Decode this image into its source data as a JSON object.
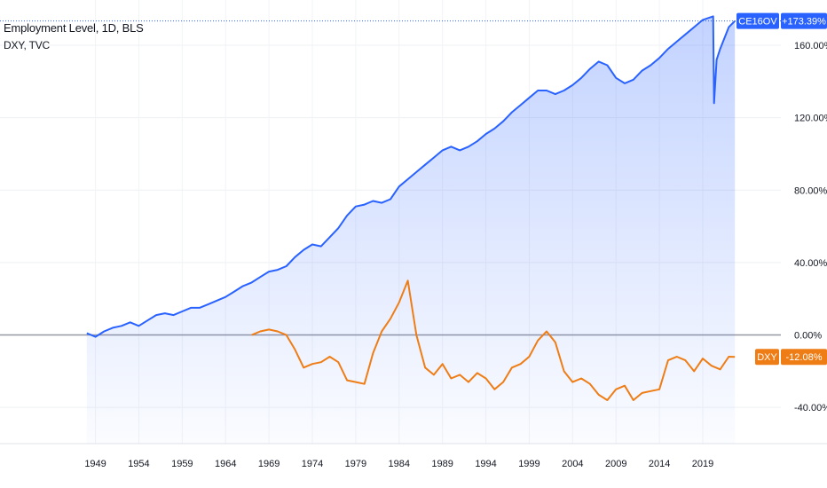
{
  "chart_data": {
    "type": "line",
    "legend": [
      "Employment Level, 1D, BLS",
      "DXY, TVC"
    ],
    "x_ticks": [
      "1949",
      "1954",
      "1959",
      "1964",
      "1969",
      "1974",
      "1979",
      "1984",
      "1989",
      "1994",
      "1999",
      "2004",
      "2009",
      "2014",
      "2019"
    ],
    "y_ticks": [
      "160.00%",
      "120.00%",
      "80.00%",
      "40.00%",
      "0.00%",
      "-40.00%"
    ],
    "ylim": [
      -60,
      185
    ],
    "xlim": [
      1938,
      2028
    ],
    "grid": true,
    "series": [
      {
        "name": "CE16OV",
        "color": "#2962ff",
        "area_fill": true,
        "last_value_label": "+173.39%",
        "points": [
          [
            1948,
            1
          ],
          [
            1949,
            -1
          ],
          [
            1950,
            2
          ],
          [
            1951,
            4
          ],
          [
            1952,
            5
          ],
          [
            1953,
            7
          ],
          [
            1954,
            5
          ],
          [
            1955,
            8
          ],
          [
            1956,
            11
          ],
          [
            1957,
            12
          ],
          [
            1958,
            11
          ],
          [
            1959,
            13
          ],
          [
            1960,
            15
          ],
          [
            1961,
            15
          ],
          [
            1962,
            17
          ],
          [
            1963,
            19
          ],
          [
            1964,
            21
          ],
          [
            1965,
            24
          ],
          [
            1966,
            27
          ],
          [
            1967,
            29
          ],
          [
            1968,
            32
          ],
          [
            1969,
            35
          ],
          [
            1970,
            36
          ],
          [
            1971,
            38
          ],
          [
            1972,
            43
          ],
          [
            1973,
            47
          ],
          [
            1974,
            50
          ],
          [
            1975,
            49
          ],
          [
            1976,
            54
          ],
          [
            1977,
            59
          ],
          [
            1978,
            66
          ],
          [
            1979,
            71
          ],
          [
            1980,
            72
          ],
          [
            1981,
            74
          ],
          [
            1982,
            73
          ],
          [
            1983,
            75
          ],
          [
            1984,
            82
          ],
          [
            1985,
            86
          ],
          [
            1986,
            90
          ],
          [
            1987,
            94
          ],
          [
            1988,
            98
          ],
          [
            1989,
            102
          ],
          [
            1990,
            104
          ],
          [
            1991,
            102
          ],
          [
            1992,
            104
          ],
          [
            1993,
            107
          ],
          [
            1994,
            111
          ],
          [
            1995,
            114
          ],
          [
            1996,
            118
          ],
          [
            1997,
            123
          ],
          [
            1998,
            127
          ],
          [
            1999,
            131
          ],
          [
            2000,
            135
          ],
          [
            2001,
            135
          ],
          [
            2002,
            133
          ],
          [
            2003,
            135
          ],
          [
            2004,
            138
          ],
          [
            2005,
            142
          ],
          [
            2006,
            147
          ],
          [
            2007,
            151
          ],
          [
            2008,
            149
          ],
          [
            2009,
            142
          ],
          [
            2010,
            139
          ],
          [
            2011,
            141
          ],
          [
            2012,
            146
          ],
          [
            2013,
            149
          ],
          [
            2014,
            153
          ],
          [
            2015,
            158
          ],
          [
            2016,
            162
          ],
          [
            2017,
            166
          ],
          [
            2018,
            170
          ],
          [
            2019,
            174
          ],
          [
            2020.2,
            176
          ],
          [
            2020.3,
            128
          ],
          [
            2020.6,
            152
          ],
          [
            2021,
            158
          ],
          [
            2022,
            170
          ],
          [
            2022.7,
            173.4
          ]
        ]
      },
      {
        "name": "DXY",
        "color": "#ef7d16",
        "area_fill": false,
        "last_value_label": "-12.08%",
        "points": [
          [
            1967,
            0
          ],
          [
            1968,
            2
          ],
          [
            1969,
            3
          ],
          [
            1970,
            2
          ],
          [
            1971,
            0
          ],
          [
            1972,
            -8
          ],
          [
            1973,
            -18
          ],
          [
            1974,
            -16
          ],
          [
            1975,
            -15
          ],
          [
            1976,
            -12
          ],
          [
            1977,
            -15
          ],
          [
            1978,
            -25
          ],
          [
            1979,
            -26
          ],
          [
            1980,
            -27
          ],
          [
            1981,
            -10
          ],
          [
            1982,
            2
          ],
          [
            1983,
            9
          ],
          [
            1984,
            18
          ],
          [
            1985,
            30
          ],
          [
            1986,
            0
          ],
          [
            1987,
            -18
          ],
          [
            1988,
            -22
          ],
          [
            1989,
            -16
          ],
          [
            1990,
            -24
          ],
          [
            1991,
            -22
          ],
          [
            1992,
            -26
          ],
          [
            1993,
            -21
          ],
          [
            1994,
            -24
          ],
          [
            1995,
            -30
          ],
          [
            1996,
            -26
          ],
          [
            1997,
            -18
          ],
          [
            1998,
            -16
          ],
          [
            1999,
            -12
          ],
          [
            2000,
            -3
          ],
          [
            2001,
            2
          ],
          [
            2002,
            -4
          ],
          [
            2003,
            -20
          ],
          [
            2004,
            -26
          ],
          [
            2005,
            -24
          ],
          [
            2006,
            -27
          ],
          [
            2007,
            -33
          ],
          [
            2008,
            -36
          ],
          [
            2009,
            -30
          ],
          [
            2010,
            -28
          ],
          [
            2011,
            -36
          ],
          [
            2012,
            -32
          ],
          [
            2013,
            -31
          ],
          [
            2014,
            -30
          ],
          [
            2015,
            -14
          ],
          [
            2016,
            -12
          ],
          [
            2017,
            -14
          ],
          [
            2018,
            -20
          ],
          [
            2019,
            -13
          ],
          [
            2020,
            -17
          ],
          [
            2021,
            -19
          ],
          [
            2022,
            -12
          ],
          [
            2022.7,
            -12.08
          ]
        ]
      }
    ],
    "badges": [
      {
        "label": "CE16OV",
        "value": "+173.39%",
        "color": "#2962ff"
      },
      {
        "label": "DXY",
        "value": "-12.08%",
        "color": "#ef7d16"
      }
    ]
  }
}
